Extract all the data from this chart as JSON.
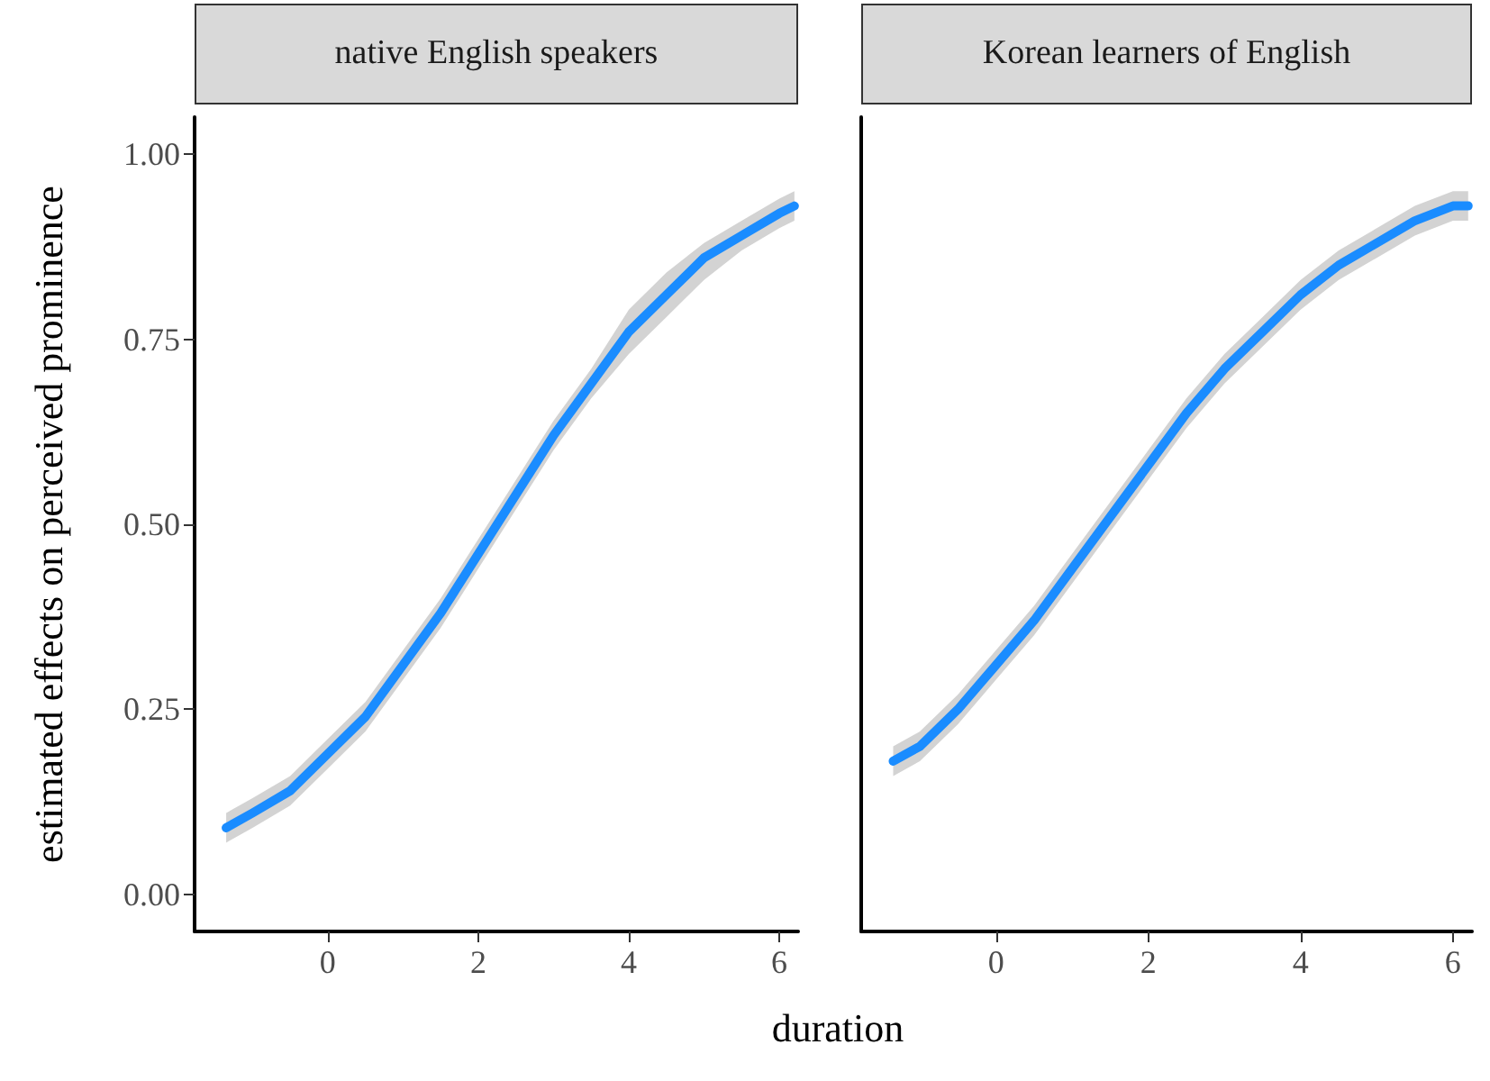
{
  "chart_data": [
    {
      "type": "line",
      "title": "native English speakers",
      "xlabel": "duration",
      "ylabel": "estimated effects on perceived prominence",
      "xlim": [
        -1.77,
        6.25
      ],
      "xticks": [
        0,
        2,
        4,
        6
      ],
      "ylim": [
        -0.05,
        1.05
      ],
      "yticks": [
        {
          "value": 0,
          "label": "0.00"
        },
        {
          "value": 0.25,
          "label": "0.25"
        },
        {
          "value": 0.5,
          "label": "0.50"
        },
        {
          "value": 0.75,
          "label": "0.75"
        },
        {
          "value": 1,
          "label": "1.00"
        }
      ],
      "grid": false,
      "marker": "none",
      "line_style": "solid",
      "series": [
        {
          "color": "#1a8cff",
          "x": [
            -1.35,
            -1,
            -0.5,
            0,
            0.5,
            1,
            1.5,
            2,
            2.5,
            3,
            3.5,
            4,
            4.5,
            5,
            5.5,
            6,
            6.2
          ],
          "values": [
            0.09,
            0.11,
            0.14,
            0.19,
            0.24,
            0.31,
            0.38,
            0.46,
            0.54,
            0.62,
            0.69,
            0.76,
            0.81,
            0.86,
            0.89,
            0.92,
            0.93
          ],
          "lower": [
            0.07,
            0.09,
            0.12,
            0.17,
            0.22,
            0.29,
            0.36,
            0.44,
            0.52,
            0.6,
            0.67,
            0.73,
            0.78,
            0.83,
            0.87,
            0.9,
            0.91
          ],
          "upper": [
            0.11,
            0.13,
            0.16,
            0.21,
            0.26,
            0.33,
            0.4,
            0.48,
            0.56,
            0.64,
            0.71,
            0.79,
            0.84,
            0.88,
            0.91,
            0.94,
            0.95
          ]
        }
      ]
    },
    {
      "type": "line",
      "title": "Korean learners of English",
      "xlim": [
        -1.77,
        6.25
      ],
      "xticks": [
        0,
        2,
        4,
        6
      ],
      "ylim": [
        -0.05,
        1.05
      ],
      "tick_labels": "x",
      "grid": false,
      "marker": "none",
      "line_style": "solid",
      "series": [
        {
          "color": "#1a8cff",
          "x": [
            -1.35,
            -1,
            -0.5,
            0,
            0.5,
            1,
            1.5,
            2,
            2.5,
            3,
            3.5,
            4,
            4.5,
            5,
            5.5,
            6,
            6.2
          ],
          "values": [
            0.18,
            0.2,
            0.25,
            0.31,
            0.37,
            0.44,
            0.51,
            0.58,
            0.65,
            0.71,
            0.76,
            0.81,
            0.85,
            0.88,
            0.91,
            0.93,
            0.93
          ],
          "lower": [
            0.16,
            0.18,
            0.23,
            0.29,
            0.35,
            0.42,
            0.49,
            0.56,
            0.63,
            0.69,
            0.74,
            0.79,
            0.83,
            0.86,
            0.89,
            0.91,
            0.91
          ],
          "upper": [
            0.2,
            0.22,
            0.27,
            0.33,
            0.39,
            0.46,
            0.53,
            0.6,
            0.67,
            0.73,
            0.78,
            0.83,
            0.87,
            0.9,
            0.93,
            0.95,
            0.95
          ]
        }
      ]
    }
  ]
}
